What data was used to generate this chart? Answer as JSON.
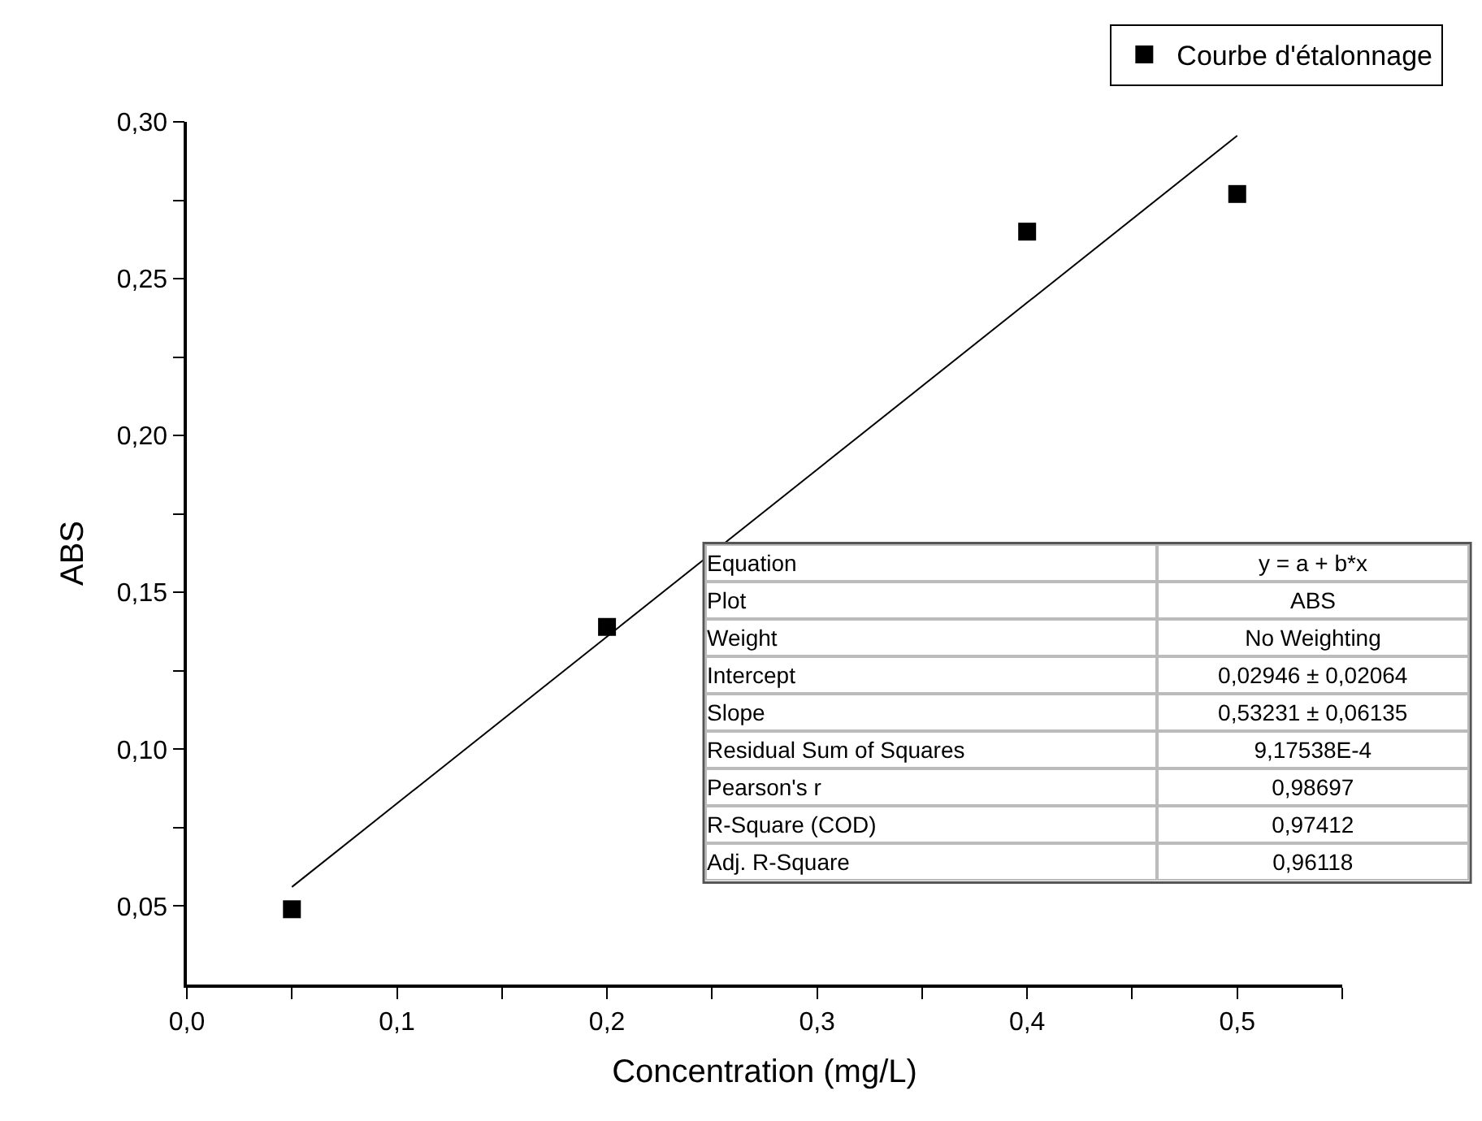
{
  "chart_data": {
    "type": "scatter",
    "xlabel": "Concentration (mg/L)",
    "ylabel": "ABS",
    "x": [
      0.05,
      0.2,
      0.4,
      0.5
    ],
    "series": [
      {
        "name": "Courbe d'étalonnage",
        "color": "#000000",
        "values": [
          0.049,
          0.139,
          0.265,
          0.277
        ],
        "marker": "square"
      },
      {
        "type": "line",
        "color": "#000000",
        "x": [
          0.05,
          0.5
        ],
        "values": [
          0.0561,
          0.2956
        ],
        "marker": "none",
        "line_style": "solid"
      }
    ],
    "xlim": [
      0,
      0.55
    ],
    "xticks": [
      {
        "value": 0,
        "label": "0,0"
      },
      {
        "value": 0.05,
        "label": null
      },
      {
        "value": 0.1,
        "label": "0,1"
      },
      {
        "value": 0.15,
        "label": null
      },
      {
        "value": 0.2,
        "label": "0,2"
      },
      {
        "value": 0.25,
        "label": null
      },
      {
        "value": 0.3,
        "label": "0,3"
      },
      {
        "value": 0.35,
        "label": null
      },
      {
        "value": 0.4,
        "label": "0,4"
      },
      {
        "value": 0.45,
        "label": null
      },
      {
        "value": 0.5,
        "label": "0,5"
      },
      {
        "value": 0.55,
        "label": null
      }
    ],
    "ylim": [
      0.025,
      0.3
    ],
    "yticks": [
      {
        "value": 0.05,
        "label": "0,05"
      },
      {
        "value": 0.075,
        "label": null
      },
      {
        "value": 0.1,
        "label": "0,10"
      },
      {
        "value": 0.125,
        "label": null
      },
      {
        "value": 0.15,
        "label": "0,15"
      },
      {
        "value": 0.175,
        "label": null
      },
      {
        "value": 0.2,
        "label": "0,20"
      },
      {
        "value": 0.225,
        "label": null
      },
      {
        "value": 0.25,
        "label": "0,25"
      },
      {
        "value": 0.275,
        "label": null
      },
      {
        "value": 0.3,
        "label": "0,30"
      }
    ],
    "annotations": [
      "Equation",
      "y = a + b*x",
      "Plot",
      "ABS",
      "Weight",
      "No Weighting",
      "Intercept",
      "0,02946 ± 0,02064",
      "Slope",
      "0,53231 ± 0,06135",
      "Residual Sum of Squares",
      "9,17538E-4",
      "Pearson's r",
      "0,98697",
      "R-Square (COD)",
      "0,97412",
      "Adj. R-Square",
      "0,96118"
    ],
    "legend": "top right"
  }
}
